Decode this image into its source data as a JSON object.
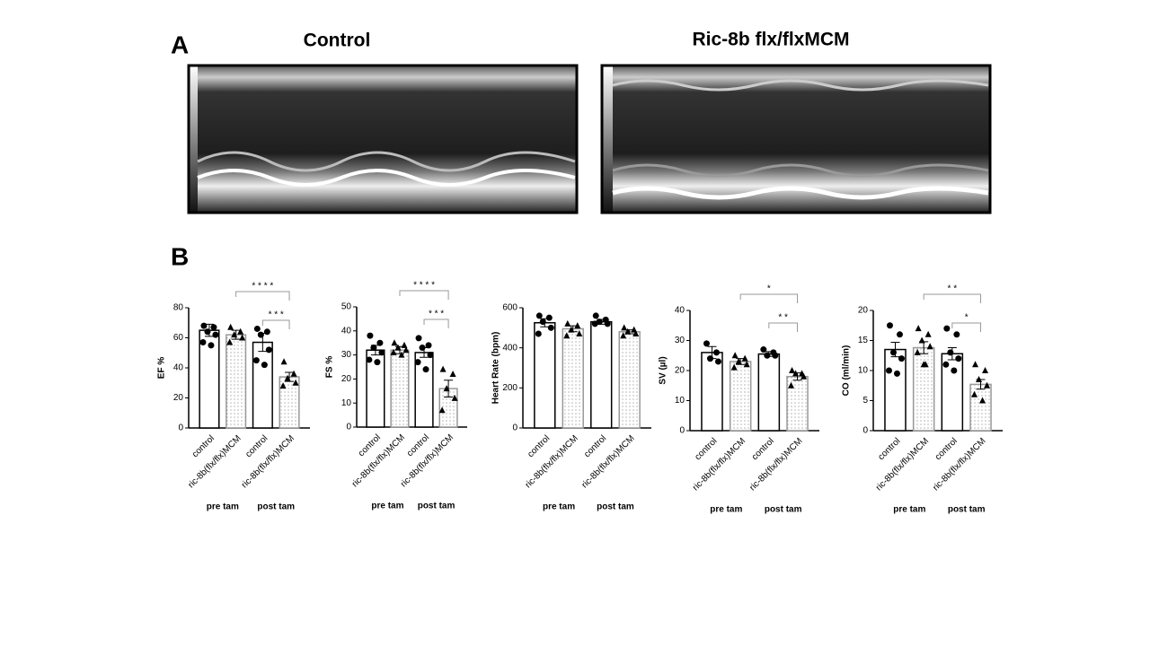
{
  "panels": {
    "A": {
      "label": "A",
      "titles": [
        "Control",
        "Ric-8b flx/flxMCM"
      ]
    },
    "B": {
      "label": "B"
    }
  },
  "chart_data": [
    {
      "type": "bar",
      "ylabel": "EF %",
      "categories": [
        "control",
        "ric-8b(flx/flx)MCM",
        "control",
        "ric-8b(flx/flx)MCM"
      ],
      "groups": [
        "pre tam",
        "post tam"
      ],
      "values": [
        65,
        62,
        57,
        34
      ],
      "errors": [
        4,
        3,
        6,
        3
      ],
      "points": [
        [
          68,
          67,
          64,
          62,
          57,
          55
        ],
        [
          67,
          64,
          62,
          60,
          57
        ],
        [
          66,
          64,
          62,
          52,
          45,
          42
        ],
        [
          44,
          36,
          33,
          30,
          28
        ]
      ],
      "ylim": [
        0,
        80
      ],
      "yticks": [
        0,
        20,
        40,
        60,
        80
      ],
      "annotations": [
        "* * * *",
        "* * *"
      ]
    },
    {
      "type": "bar",
      "ylabel": "FS %",
      "categories": [
        "control",
        "ric-8b(flx/flx)MCM",
        "control",
        "ric-8b(flx/flx)MCM"
      ],
      "groups": [
        "pre tam",
        "post tam"
      ],
      "values": [
        32,
        32,
        31,
        16
      ],
      "errors": [
        2,
        1.5,
        2,
        3.5
      ],
      "points": [
        [
          38,
          35,
          33,
          31,
          28,
          27
        ],
        [
          35,
          34,
          33,
          32,
          31,
          30
        ],
        [
          37,
          34,
          33,
          30,
          27,
          24
        ],
        [
          24,
          22,
          16,
          12,
          7
        ]
      ],
      "ylim": [
        0,
        50
      ],
      "yticks": [
        0,
        10,
        20,
        30,
        40,
        50
      ],
      "annotations": [
        "* * * *",
        "* * *"
      ]
    },
    {
      "type": "bar",
      "ylabel": "Heart Rate (bpm)",
      "categories": [
        "control",
        "ric-8b(flx/flx)MCM",
        "control",
        "ric-8b(flx/flx)MCM"
      ],
      "groups": [
        "pre tam",
        "post tam"
      ],
      "values": [
        525,
        495,
        530,
        480
      ],
      "errors": [
        20,
        15,
        12,
        10
      ],
      "points": [
        [
          560,
          550,
          530,
          500,
          470
        ],
        [
          520,
          510,
          490,
          470,
          460
        ],
        [
          560,
          540,
          530,
          520,
          520
        ],
        [
          500,
          490,
          480,
          470,
          460
        ]
      ],
      "ylim": [
        0,
        600
      ],
      "yticks": [
        0,
        200,
        400,
        600
      ],
      "annotations": []
    },
    {
      "type": "bar",
      "ylabel": "SV (µl)",
      "categories": [
        "control",
        "ric-8b(flx/flx)MCM",
        "control",
        "ric-8b(flx/flx)MCM"
      ],
      "groups": [
        "pre tam",
        "post tam"
      ],
      "values": [
        26,
        23,
        25.5,
        18
      ],
      "errors": [
        2,
        1,
        0.8,
        1.2
      ],
      "points": [
        [
          29,
          26,
          24,
          23
        ],
        [
          25,
          24,
          23,
          22,
          21
        ],
        [
          27,
          26,
          25,
          25
        ],
        [
          20,
          19,
          19,
          18,
          15
        ]
      ],
      "ylim": [
        0,
        40
      ],
      "yticks": [
        0,
        10,
        20,
        30,
        40
      ],
      "annotations": [
        "*",
        "* *"
      ]
    },
    {
      "type": "bar",
      "ylabel": "CO (ml/min)",
      "categories": [
        "control",
        "ric-8b(flx/flx)MCM",
        "control",
        "ric-8b(flx/flx)MCM"
      ],
      "groups": [
        "pre tam",
        "post tam"
      ],
      "values": [
        13.5,
        13.8,
        12.8,
        7.7
      ],
      "errors": [
        1.2,
        1,
        1,
        0.8
      ],
      "points": [
        [
          17.5,
          16,
          13,
          12,
          10,
          9.5
        ],
        [
          17,
          16,
          15,
          14,
          13,
          11,
          11
        ],
        [
          17,
          16,
          13,
          12,
          11,
          10
        ],
        [
          11,
          10,
          8.5,
          7.5,
          6,
          5
        ]
      ],
      "ylim": [
        0,
        20
      ],
      "yticks": [
        0,
        5,
        10,
        15,
        20
      ],
      "annotations": [
        "* *",
        "*"
      ]
    }
  ]
}
